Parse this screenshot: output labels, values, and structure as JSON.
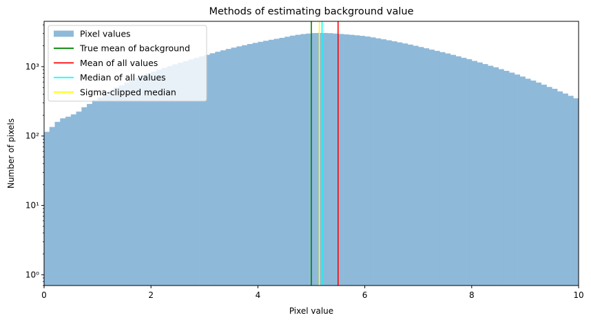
{
  "chart_data": {
    "type": "bar",
    "title": "Methods of estimating background value",
    "xlabel": "Pixel value",
    "ylabel": "Number of pixels",
    "xlim": [
      0,
      10
    ],
    "ylim": [
      0.7,
      4500
    ],
    "yscale": "log",
    "x_ticks": [
      0,
      2,
      4,
      6,
      8,
      10
    ],
    "x_tick_labels": [
      "0",
      "2",
      "4",
      "6",
      "8",
      "10"
    ],
    "y_ticks": [
      1,
      10,
      100,
      1000
    ],
    "y_tick_labels": [
      "10⁰",
      "10¹",
      "10²",
      "10³"
    ],
    "grid": false,
    "legend_position": "top-left",
    "histogram": {
      "name": "Pixel values",
      "color": "#8fb9d9",
      "bin_start": 0,
      "bin_width": 0.1,
      "counts": [
        115,
        135,
        160,
        180,
        190,
        205,
        225,
        260,
        290,
        330,
        360,
        400,
        450,
        500,
        540,
        590,
        640,
        690,
        740,
        800,
        850,
        905,
        960,
        1020,
        1080,
        1140,
        1200,
        1270,
        1340,
        1410,
        1480,
        1560,
        1640,
        1720,
        1800,
        1880,
        1960,
        2040,
        2120,
        2200,
        2280,
        2360,
        2440,
        2520,
        2600,
        2700,
        2800,
        2880,
        2950,
        3000,
        3050,
        3060,
        3060,
        3040,
        3000,
        2960,
        2920,
        2880,
        2830,
        2780,
        2720,
        2640,
        2560,
        2480,
        2400,
        2320,
        2240,
        2160,
        2080,
        2000,
        1920,
        1840,
        1760,
        1690,
        1620,
        1550,
        1480,
        1410,
        1340,
        1280,
        1210,
        1150,
        1090,
        1030,
        980,
        920,
        870,
        820,
        770,
        720,
        670,
        630,
        590,
        550,
        510,
        480,
        440,
        410,
        380,
        350
      ]
    },
    "vlines": [
      {
        "name": "True mean of background",
        "x": 5.0,
        "color": "#008000"
      },
      {
        "name": "Mean of all values",
        "x": 5.5,
        "color": "#ff0000"
      },
      {
        "name": "Median of all values",
        "x": 5.2,
        "color": "#00ffff"
      },
      {
        "name": "Sigma-clipped median",
        "x": 5.15,
        "color": "#ffff00"
      }
    ],
    "legend": [
      {
        "label": "Pixel values",
        "kind": "patch",
        "color": "#8fb9d9"
      },
      {
        "label": "True mean of background",
        "kind": "line",
        "color": "#008000"
      },
      {
        "label": "Mean of all values",
        "kind": "line",
        "color": "#ff0000"
      },
      {
        "label": "Median of all values",
        "kind": "line",
        "color": "#00ffff"
      },
      {
        "label": "Sigma-clipped median",
        "kind": "line",
        "color": "#ffff00"
      }
    ]
  }
}
